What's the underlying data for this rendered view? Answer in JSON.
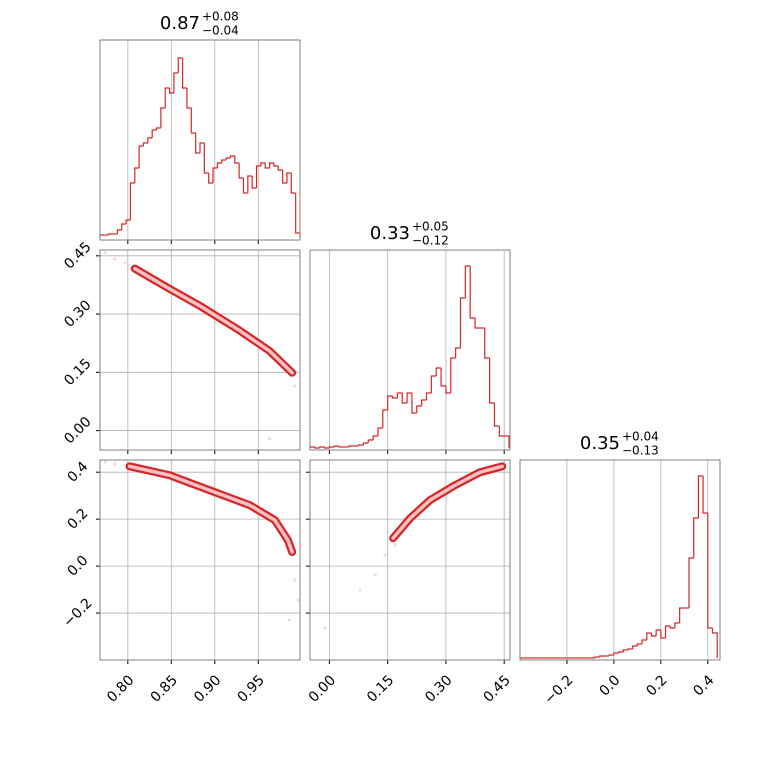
{
  "chart_data": {
    "type": "corner",
    "color": "#d62728",
    "grid": true,
    "hist_ylim": [
      -2,
      198
    ],
    "parameters": [
      {
        "title": {
          "value": "0.87",
          "plus": "+0.08",
          "minus": "−0.04"
        },
        "lim": [
          0.768,
          0.998
        ],
        "ticks": [
          {
            "value": 0.8,
            "label": "0.80"
          },
          {
            "value": 0.85,
            "label": "0.85"
          },
          {
            "value": 0.9,
            "label": "0.90"
          },
          {
            "value": 0.95,
            "label": "0.95"
          }
        ],
        "bins": [
          0.768,
          0.773,
          0.778,
          0.783,
          0.788,
          0.793,
          0.798,
          0.803,
          0.808,
          0.813,
          0.818,
          0.823,
          0.828,
          0.833,
          0.838,
          0.843,
          0.848,
          0.853,
          0.858,
          0.863,
          0.868,
          0.873,
          0.878,
          0.883,
          0.888,
          0.893,
          0.898,
          0.903,
          0.908,
          0.913,
          0.918,
          0.923,
          0.928,
          0.933,
          0.938,
          0.943,
          0.948,
          0.953,
          0.958,
          0.963,
          0.968,
          0.973,
          0.978,
          0.983,
          0.988,
          0.993,
          0.998
        ],
        "values": [
          3,
          3,
          4,
          4,
          8,
          14,
          18,
          55,
          70,
          92,
          95,
          100,
          108,
          110,
          130,
          150,
          145,
          165,
          180,
          150,
          130,
          105,
          85,
          95,
          65,
          55,
          70,
          75,
          78,
          80,
          82,
          75,
          60,
          45,
          62,
          50,
          72,
          75,
          70,
          75,
          72,
          68,
          55,
          65,
          45,
          5
        ]
      },
      {
        "title": {
          "value": "0.33",
          "plus": "+0.05",
          "minus": "−0.12"
        },
        "lim": [
          -0.05,
          0.465
        ],
        "ticks": [
          {
            "value": 0,
            "label": "0.00"
          },
          0.15,
          {
            "value": 0.3,
            "label": "0.30"
          },
          0.45
        ],
        "bins": [
          -0.05,
          -0.0375,
          -0.025,
          -0.0125,
          0,
          0.0125,
          0.025,
          0.0375,
          0.05,
          0.0625,
          0.075,
          0.0875,
          0.1,
          0.1125,
          0.125,
          0.1375,
          0.15,
          0.1625,
          0.175,
          0.1875,
          0.2,
          0.2125,
          0.225,
          0.2375,
          0.25,
          0.2625,
          0.275,
          0.2875,
          0.3,
          0.3125,
          0.325,
          0.3375,
          0.35,
          0.3625,
          0.375,
          0.3875,
          0.4,
          0.4125,
          0.425,
          0.4375,
          0.45,
          0.4625
        ],
        "values": [
          1,
          0,
          1,
          0,
          1,
          2,
          1,
          1,
          2,
          2,
          3,
          5,
          8,
          12,
          20,
          38,
          52,
          50,
          55,
          45,
          55,
          35,
          42,
          48,
          55,
          72,
          80,
          62,
          55,
          90,
          100,
          150,
          182,
          130,
          120,
          120,
          90,
          45,
          22,
          12,
          12
        ]
      },
      {
        "title": {
          "value": "0.35",
          "plus": "+0.04",
          "minus": "−0.13"
        },
        "lim": [
          -0.4,
          0.452
        ],
        "ticks": [
          {
            "value": -0.2,
            "label": "−0.2"
          },
          {
            "value": 0,
            "label": "0.0"
          },
          0.2,
          0.4
        ],
        "bins": [
          -0.4,
          -0.38,
          -0.36,
          -0.34,
          -0.32,
          -0.3,
          -0.28,
          -0.26,
          -0.24,
          -0.22,
          -0.2,
          -0.18,
          -0.16,
          -0.14,
          -0.12,
          -0.1,
          -0.08,
          -0.06,
          -0.04,
          -0.02,
          0,
          0.02,
          0.04,
          0.06,
          0.08,
          0.1,
          0.12,
          0.14,
          0.16,
          0.18,
          0.2,
          0.22,
          0.24,
          0.26,
          0.28,
          0.3,
          0.32,
          0.34,
          0.36,
          0.38,
          0.4,
          0.42,
          0.44
        ],
        "values": [
          0,
          0,
          0,
          0,
          0,
          0,
          0,
          0,
          0,
          0,
          0,
          0,
          0,
          0,
          0,
          0,
          1,
          2,
          2,
          3,
          5,
          6,
          8,
          9,
          12,
          14,
          18,
          25,
          22,
          28,
          20,
          32,
          30,
          35,
          50,
          50,
          100,
          140,
          182,
          145,
          30,
          25
        ]
      }
    ],
    "pairs": [
      {
        "contour": {
          "x": [
            0.808,
            0.848,
            0.883,
            0.929,
            0.963,
            0.989
          ],
          "y": [
            0.417,
            0.365,
            0.321,
            0.257,
            0.205,
            0.149
          ]
        },
        "samples": {
          "x": [
            0.774,
            0.785,
            0.797,
            0.992,
            0.963
          ],
          "y": [
            0.458,
            0.442,
            0.432,
            0.115,
            -0.021
          ]
        }
      },
      {
        "contour": {
          "x": [
            0.802,
            0.848,
            0.894,
            0.94,
            0.969,
            0.984,
            0.989
          ],
          "y": [
            0.425,
            0.387,
            0.323,
            0.26,
            0.196,
            0.111,
            0.06
          ]
        },
        "samples": {
          "x": [
            0.774,
            0.785,
            0.992,
            0.996,
            0.986
          ],
          "y": [
            0.443,
            0.434,
            -0.06,
            -0.145,
            -0.23
          ]
        }
      },
      {
        "contour": {
          "x": [
            0.164,
            0.208,
            0.259,
            0.324,
            0.388,
            0.445
          ],
          "y": [
            0.119,
            0.204,
            0.281,
            0.345,
            0.4,
            0.425
          ]
        },
        "samples": {
          "x": [
            0.143,
            0.118,
            0.079,
            -0.011,
            0.169
          ],
          "y": [
            0.047,
            -0.038,
            -0.102,
            -0.264,
            0.089
          ]
        }
      }
    ]
  }
}
